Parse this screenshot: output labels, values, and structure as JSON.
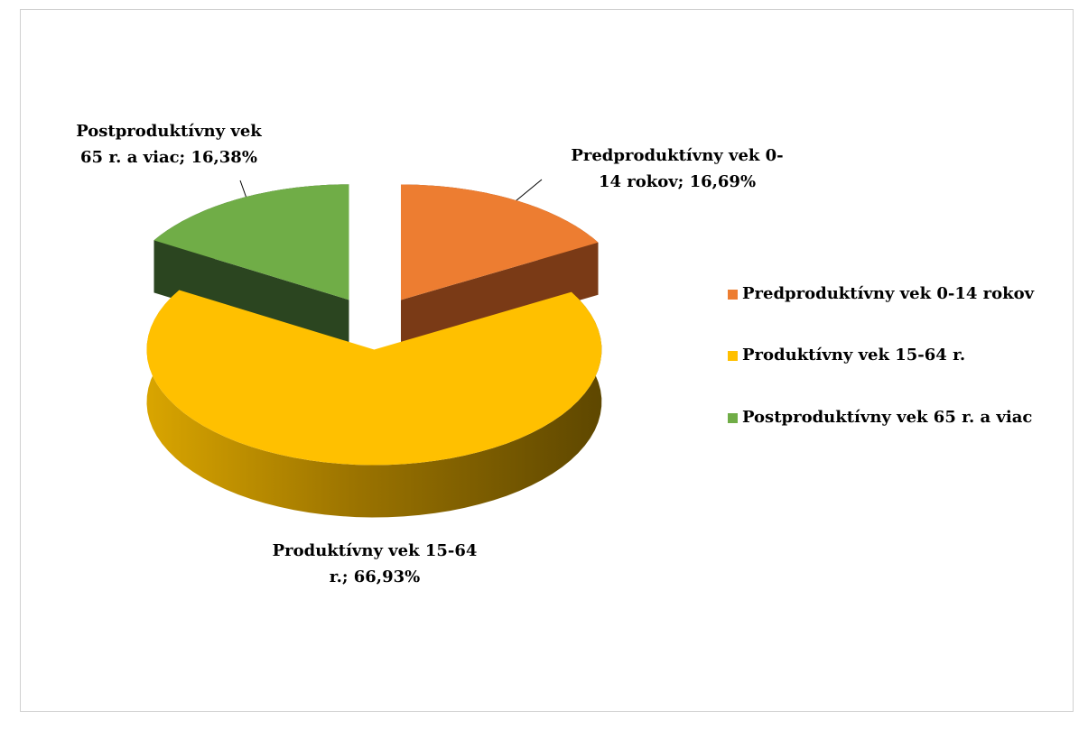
{
  "chart_data": {
    "type": "pie3d",
    "categories": [
      "Predproduktívny vek 0-14 rokov",
      "Produktívny vek 15-64 r.",
      "Postproduktívny vek 65 r. a viac"
    ],
    "values": [
      16.69,
      66.93,
      16.38
    ],
    "value_labels": [
      "Predproduktívny vek 0-14 rokov; 16,69%",
      "Produktívny vek 15-64 r.; 66,93%",
      "Postproduktívny vek 65 r. a viac; 16,38%"
    ],
    "colors": [
      "#ED7D31",
      "#FFC000",
      "#70AD47"
    ],
    "legend": "right"
  }
}
